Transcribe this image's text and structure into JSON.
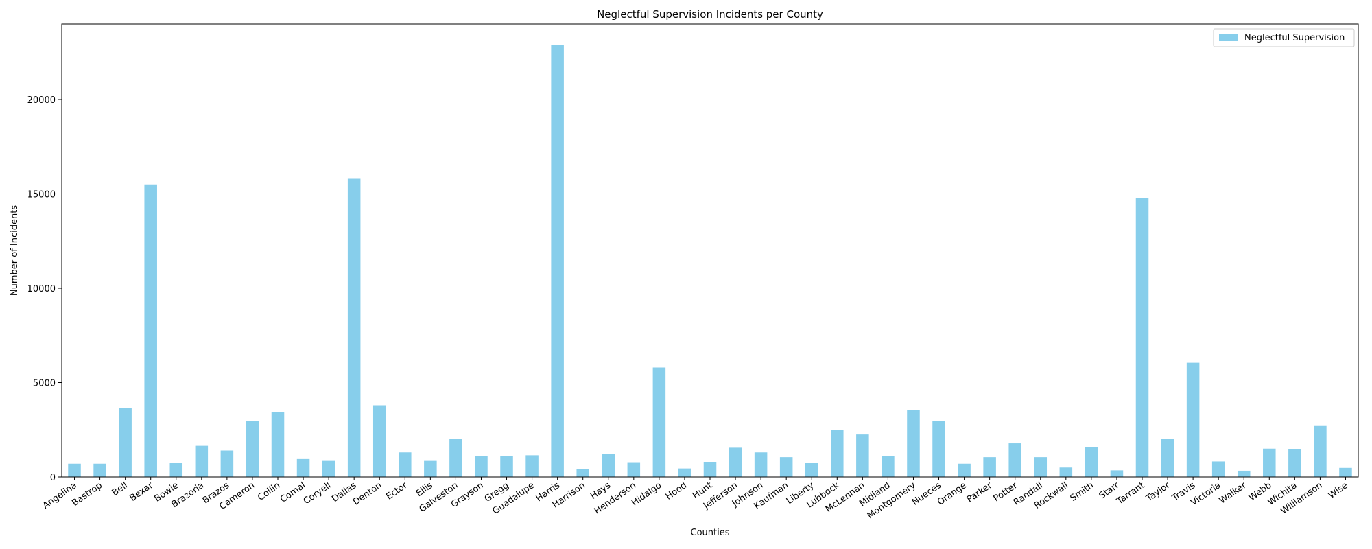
{
  "chart_data": {
    "type": "bar",
    "title": "Neglectful Supervision Incidents per County",
    "xlabel": "Counties",
    "ylabel": "Number of Incidents",
    "ylim": [
      0,
      24000
    ],
    "yticks": [
      "0",
      "5000",
      "10000",
      "15000",
      "20000"
    ],
    "grid": false,
    "legend_position": "top-right",
    "bar_color": "#87ceeb",
    "categories": [
      "Angelina",
      "Bastrop",
      "Bell",
      "Bexar",
      "Bowie",
      "Brazoria",
      "Brazos",
      "Cameron",
      "Collin",
      "Comal",
      "Coryell",
      "Dallas",
      "Denton",
      "Ector",
      "Ellis",
      "Galveston",
      "Grayson",
      "Gregg",
      "Guadalupe",
      "Harris",
      "Harrison",
      "Hays",
      "Henderson",
      "Hidalgo",
      "Hood",
      "Hunt",
      "Jefferson",
      "Johnson",
      "Kaufman",
      "Liberty",
      "Lubbock",
      "McLennan",
      "Midland",
      "Montgomery",
      "Nueces",
      "Orange",
      "Parker",
      "Potter",
      "Randall",
      "Rockwall",
      "Smith",
      "Starr",
      "Tarrant",
      "Taylor",
      "Travis",
      "Victoria",
      "Walker",
      "Webb",
      "Wichita",
      "Williamson",
      "Wise"
    ],
    "series": [
      {
        "name": "Neglectful Supervision",
        "values": [
          700,
          700,
          3650,
          15500,
          750,
          1650,
          1400,
          2950,
          3450,
          950,
          850,
          15800,
          3800,
          1300,
          850,
          2000,
          1100,
          1100,
          1150,
          22900,
          400,
          1200,
          780,
          5800,
          450,
          800,
          1550,
          1300,
          1050,
          730,
          2500,
          2250,
          1100,
          3550,
          2950,
          700,
          1050,
          1780,
          1050,
          500,
          1600,
          350,
          14800,
          2000,
          6050,
          820,
          330,
          1500,
          1480,
          2700,
          480
        ]
      }
    ]
  }
}
